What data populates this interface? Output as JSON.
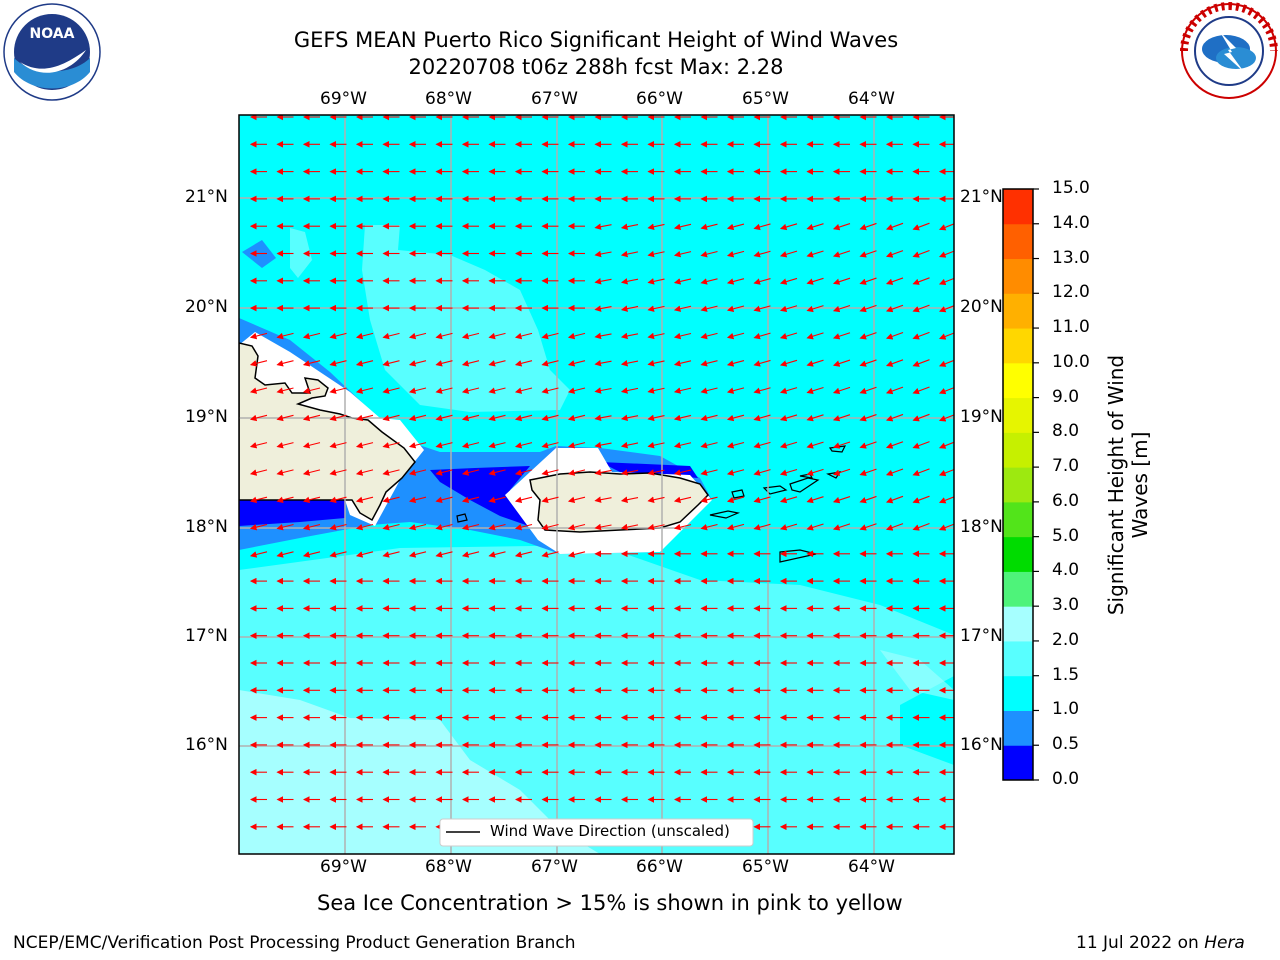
{
  "title": {
    "line1": "GEFS MEAN Puerto Rico Significant Height of Wind Waves",
    "line2": "20220708 t06z 288h fcst   Max: 2.28"
  },
  "axes": {
    "lon_labels": [
      "69°W",
      "68°W",
      "67°W",
      "66°W",
      "65°W",
      "64°W"
    ],
    "lat_labels": [
      "21°N",
      "20°N",
      "19°N",
      "18°N",
      "17°N",
      "16°N"
    ]
  },
  "legend": {
    "label": "Wind Wave Direction (unscaled)"
  },
  "colorbar": {
    "label": "Significant Height of Wind Waves [m]",
    "ticks": [
      "0.0",
      "0.5",
      "1.0",
      "1.5",
      "2.0",
      "3.0",
      "4.0",
      "5.0",
      "6.0",
      "7.0",
      "8.0",
      "9.0",
      "10.0",
      "11.0",
      "12.0",
      "13.0",
      "14.0",
      "15.0"
    ],
    "colors": [
      "#0000ff",
      "#1e90ff",
      "#00ffff",
      "#58ffff",
      "#a6ffff",
      "#4ef37a",
      "#00dc00",
      "#52e41a",
      "#9de910",
      "#c6f000",
      "#e6f500",
      "#ffff00",
      "#ffd700",
      "#ffb000",
      "#ff8c00",
      "#ff6000",
      "#ff3000",
      "#ff0000"
    ]
  },
  "footer": {
    "sea_ice_note": "Sea Ice Concentration > 15% is shown in pink to yellow",
    "branch": "NCEP/EMC/Verification Post Processing Product Generation Branch",
    "date": "11 Jul 2022 on",
    "host": "Hera"
  },
  "logos": {
    "left": "noaa-logo",
    "left_text": "NOAA",
    "right": "nws-logo"
  }
}
